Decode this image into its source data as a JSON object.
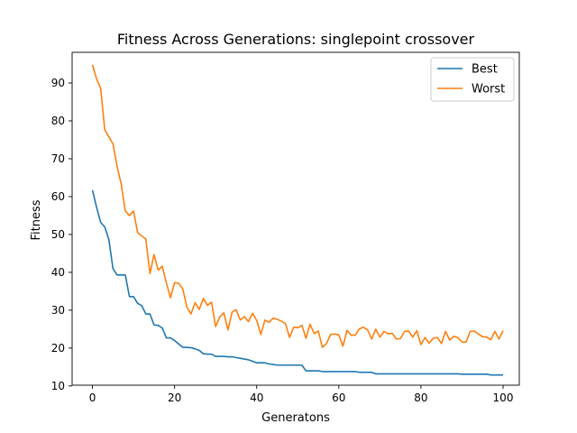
{
  "chart_data": {
    "type": "line",
    "title": "Fitness Across Generations: singlepoint crossover",
    "xlabel": "Generatons",
    "ylabel": "Fitness",
    "xlim": [
      -4.95,
      103.95
    ],
    "ylim": [
      10.2,
      98.1
    ],
    "xticks": [
      0,
      20,
      40,
      60,
      80,
      100
    ],
    "yticks": [
      10,
      20,
      30,
      40,
      50,
      60,
      70,
      80,
      90
    ],
    "grid": false,
    "legend_position": "top-right",
    "series": [
      {
        "name": "Best",
        "color": "#1f77b4",
        "y": [
          61.7,
          57.2,
          53.2,
          52.0,
          48.6,
          41.0,
          39.3,
          39.3,
          39.3,
          33.6,
          33.6,
          31.8,
          31.2,
          29.0,
          29.0,
          26.1,
          26.0,
          25.3,
          22.7,
          22.7,
          22.0,
          21.1,
          20.2,
          20.2,
          20.1,
          19.8,
          19.4,
          18.5,
          18.4,
          18.4,
          17.8,
          17.8,
          17.8,
          17.7,
          17.7,
          17.5,
          17.3,
          17.1,
          16.9,
          16.5,
          16.1,
          16.1,
          16.1,
          15.8,
          15.7,
          15.5,
          15.5,
          15.5,
          15.5,
          15.5,
          15.5,
          15.5,
          14.0,
          14.0,
          14.0,
          14.0,
          13.8,
          13.8,
          13.8,
          13.8,
          13.8,
          13.8,
          13.8,
          13.8,
          13.8,
          13.6,
          13.6,
          13.6,
          13.6,
          13.2,
          13.2,
          13.2,
          13.2,
          13.2,
          13.2,
          13.2,
          13.2,
          13.2,
          13.2,
          13.2,
          13.2,
          13.2,
          13.2,
          13.2,
          13.2,
          13.2,
          13.2,
          13.2,
          13.2,
          13.2,
          13.1,
          13.1,
          13.1,
          13.1,
          13.1,
          13.1,
          13.1,
          12.9,
          12.9,
          12.9,
          12.9
        ]
      },
      {
        "name": "Worst",
        "color": "#ff7f0e",
        "y": [
          94.8,
          91.1,
          88.6,
          77.6,
          75.8,
          73.9,
          68.0,
          63.3,
          56.2,
          55.0,
          56.2,
          50.5,
          49.6,
          48.8,
          39.7,
          44.7,
          40.6,
          41.6,
          37.2,
          33.3,
          37.3,
          37.1,
          35.6,
          30.8,
          29.0,
          32.0,
          30.2,
          33.1,
          31.3,
          32.1,
          25.7,
          28.2,
          29.3,
          24.8,
          29.5,
          30.1,
          27.4,
          28.3,
          27.0,
          29.2,
          27.3,
          23.6,
          27.4,
          26.8,
          27.9,
          27.6,
          27.1,
          26.5,
          22.8,
          25.5,
          25.4,
          26.0,
          22.6,
          26.3,
          23.8,
          24.5,
          20.2,
          21.2,
          23.6,
          23.7,
          23.5,
          20.5,
          24.7,
          23.4,
          23.4,
          25.1,
          25.5,
          24.8,
          22.4,
          25.0,
          22.9,
          24.4,
          23.8,
          23.9,
          22.4,
          22.5,
          24.4,
          24.5,
          22.9,
          24.6,
          20.9,
          22.8,
          21.3,
          22.6,
          22.8,
          21.2,
          24.4,
          22.1,
          23.1,
          22.8,
          21.6,
          21.6,
          24.4,
          24.5,
          23.7,
          23.0,
          22.9,
          22.2,
          24.4,
          22.4,
          24.6
        ]
      }
    ]
  }
}
